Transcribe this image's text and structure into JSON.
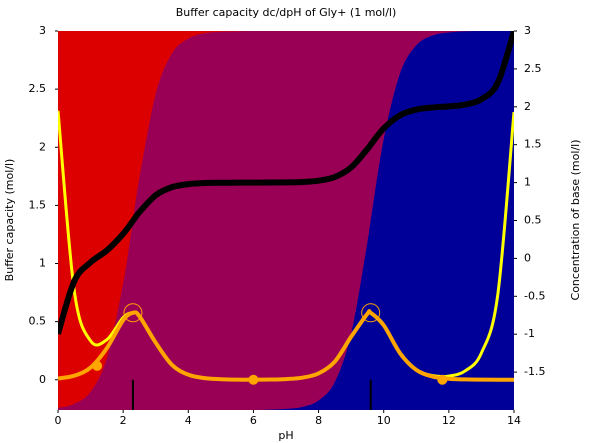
{
  "chart_data": {
    "type": "line",
    "title": "Buffer capacity dc/dpH of Gly+ (1 mol/l)",
    "x_label": "pH",
    "y_label": "Buffer capacity (mol/l)",
    "y2_label": "Concentration of base (mol/l)",
    "x": [
      0,
      0.5,
      1,
      1.5,
      2,
      2.3,
      2.5,
      3,
      3.5,
      4,
      4.5,
      5,
      5.5,
      6,
      6.5,
      7,
      7.5,
      8,
      8.5,
      9,
      9.5,
      9.6,
      10,
      10.5,
      11,
      11.5,
      12,
      12.5,
      13,
      13.5,
      14
    ],
    "species_fractions": [
      {
        "color": "#000099",
        "values": [
          0,
          0,
          0,
          0,
          0,
          0,
          0,
          0,
          0,
          0,
          0,
          0,
          0,
          0,
          0.001,
          0.003,
          0.008,
          0.025,
          0.074,
          0.201,
          0.443,
          0.5,
          0.715,
          0.888,
          0.962,
          0.988,
          0.996,
          0.999,
          1,
          1,
          1
        ]
      },
      {
        "color": "#990055",
        "values": [
          0.005,
          0.016,
          0.048,
          0.137,
          0.334,
          0.5,
          0.613,
          0.834,
          0.941,
          0.98,
          0.994,
          0.998,
          0.999,
          1,
          0.999,
          0.997,
          0.992,
          0.975,
          0.926,
          0.799,
          0.557,
          0.5,
          0.285,
          0.112,
          0.038,
          0.012,
          0.004,
          0.001,
          0,
          0,
          0
        ]
      },
      {
        "color": "#dd0000",
        "values": [
          0.995,
          0.984,
          0.952,
          0.863,
          0.666,
          0.5,
          0.387,
          0.166,
          0.059,
          0.02,
          0.006,
          0.002,
          0.001,
          0,
          0,
          0,
          0,
          0,
          0,
          0,
          0,
          0,
          0,
          0,
          0,
          0,
          0,
          0,
          0,
          0,
          0
        ]
      }
    ],
    "series": [
      {
        "color": "#ffff00",
        "width": 3,
        "values": [
          2.314,
          0.764,
          0.335,
          0.345,
          0.535,
          0.578,
          0.553,
          0.322,
          0.129,
          0.044,
          0.014,
          0.005,
          0.002,
          0.001,
          0.002,
          0.006,
          0.018,
          0.055,
          0.157,
          0.37,
          0.568,
          0.576,
          0.469,
          0.229,
          0.087,
          0.036,
          0.032,
          0.076,
          0.231,
          0.728,
          2.303
        ]
      },
      {
        "color": "#ffa500",
        "width": 4,
        "values": [
          0.011,
          0.035,
          0.105,
          0.272,
          0.512,
          0.576,
          0.546,
          0.319,
          0.128,
          0.044,
          0.014,
          0.005,
          0.001,
          0.001,
          0.002,
          0.006,
          0.018,
          0.055,
          0.157,
          0.37,
          0.568,
          0.576,
          0.469,
          0.229,
          0.085,
          0.028,
          0.009,
          0.003,
          0.001,
          0,
          0
        ]
      },
      {
        "color": "#000000",
        "width": 6,
        "axis": "y2",
        "values": [
          -0.995,
          -0.3,
          -0.052,
          0.105,
          0.324,
          0.495,
          0.61,
          0.833,
          0.94,
          0.98,
          0.994,
          0.998,
          0.999,
          1,
          1.001,
          1.003,
          1.008,
          1.025,
          1.074,
          1.201,
          1.443,
          1.5,
          1.715,
          1.888,
          1.963,
          1.991,
          2.006,
          2.03,
          2.1,
          2.316,
          3
        ]
      }
    ],
    "equivalence_points": {
      "color": "#ffa500",
      "x": [
        1.2,
        6,
        11.8
      ],
      "values": [
        0.12,
        0,
        0
      ]
    },
    "pka_points": {
      "color": "#ffa500",
      "x": [
        2.3,
        9.6
      ],
      "values": [
        0.576,
        0.576
      ]
    },
    "xlim": [
      0,
      14
    ],
    "xticks": [
      0,
      2,
      4,
      6,
      8,
      10,
      12,
      14
    ],
    "ylim": [
      -0.26,
      3
    ],
    "yticks": [
      0,
      0.5,
      1,
      1.5,
      2,
      2.5,
      3
    ],
    "y2lim": [
      -2,
      3
    ],
    "y2ticks": [
      -1.5,
      -1,
      -0.5,
      0,
      0.5,
      1,
      1.5,
      2,
      2.5,
      3
    ]
  }
}
